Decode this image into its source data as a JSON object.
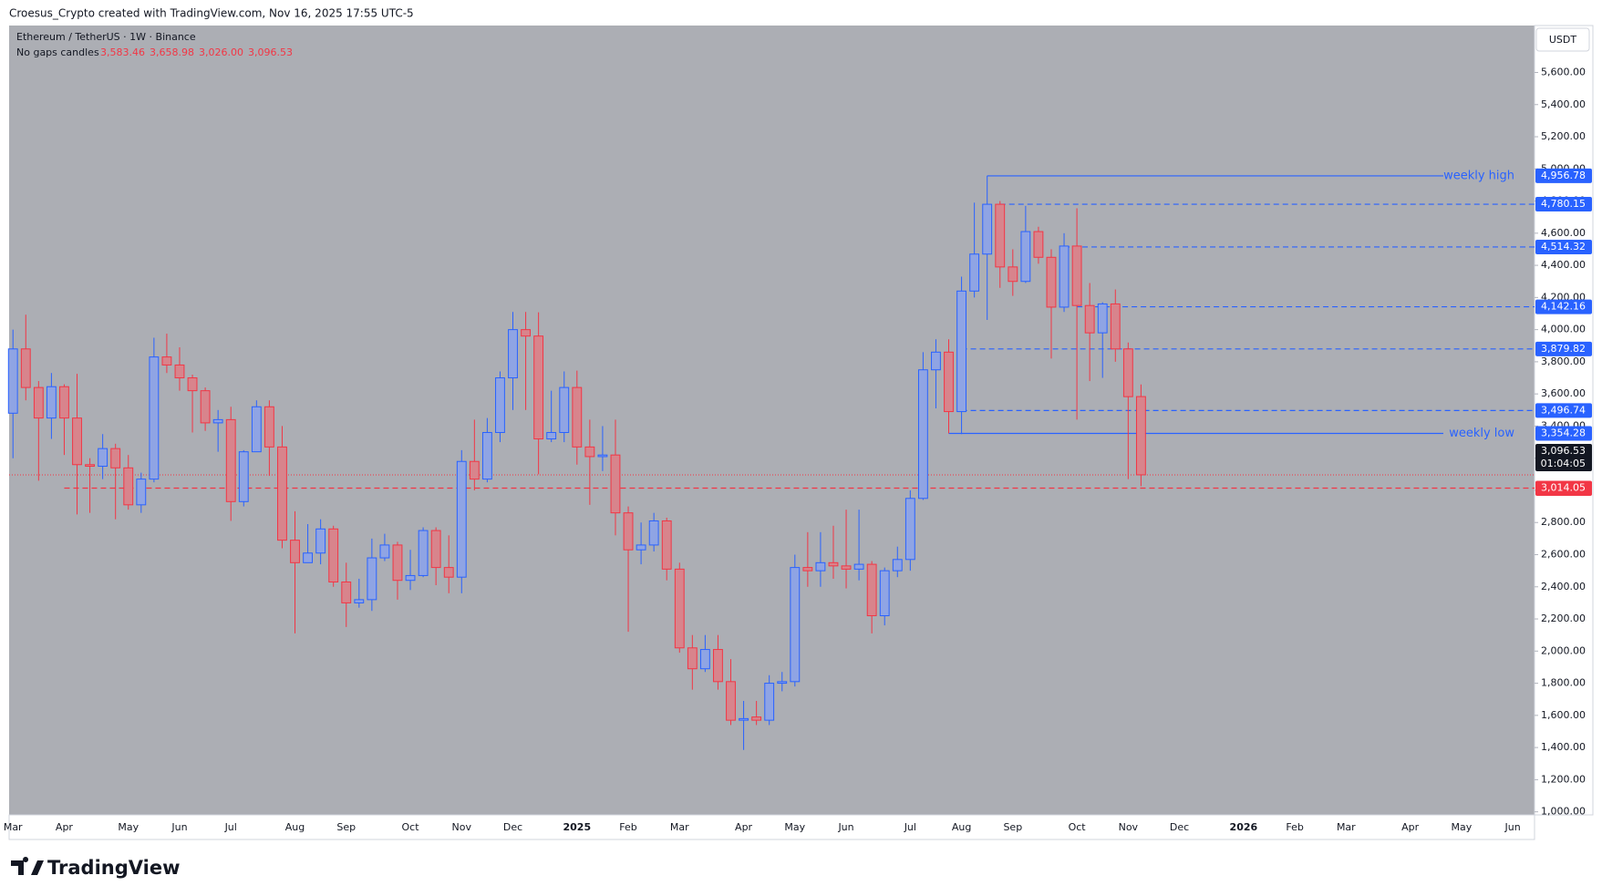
{
  "top_caption": "Croesus_Crypto created with TradingView.com, Nov 16, 2025 17:55 UTC-5",
  "brand": "TradingView",
  "chart_data": {
    "type": "candlestick",
    "symbol": "Ethereum / TetherUS · 1W · Binance",
    "candle_style": "No gaps candles",
    "ohlc_labels": [
      "3,583.46",
      "3,658.98",
      "3,026.00",
      "3,096.53"
    ],
    "currency": "USDT",
    "categories": [
      "Mar",
      null,
      null,
      null,
      "Apr",
      null,
      null,
      null,
      null,
      "May",
      null,
      null,
      null,
      "Jun",
      null,
      null,
      null,
      "Jul",
      null,
      null,
      null,
      null,
      "Aug",
      null,
      null,
      null,
      "Sep",
      null,
      null,
      null,
      null,
      "Oct",
      null,
      null,
      null,
      "Nov",
      null,
      null,
      null,
      "Dec",
      null,
      null,
      null,
      null,
      "2025",
      null,
      null,
      null,
      "Feb",
      null,
      null,
      null,
      "Mar",
      null,
      null,
      null,
      null,
      "Apr",
      null,
      null,
      null,
      "May",
      null,
      null,
      null,
      "Jun",
      null,
      null,
      null,
      null,
      "Jul",
      null,
      null,
      null,
      "Aug",
      null,
      null,
      null,
      "Sep",
      null,
      null,
      null,
      null,
      "Oct",
      null,
      null,
      null,
      "Nov",
      null,
      null,
      null,
      "Dec",
      null,
      null,
      null,
      null,
      "2026",
      null,
      null,
      null,
      "Feb",
      null,
      null,
      null,
      "Mar",
      null,
      null,
      null,
      null,
      "Apr",
      null,
      null,
      null,
      "May",
      null,
      null,
      null,
      "Jun",
      null
    ],
    "open": [
      3480,
      3880,
      3640,
      3450,
      3645,
      3450,
      3160,
      3150,
      3260,
      3140,
      2910,
      3070,
      3830,
      3780,
      3700,
      3620,
      3420,
      3440,
      2930,
      3240,
      3520,
      3270,
      2690,
      2550,
      2610,
      2760,
      2430,
      2300,
      2320,
      2580,
      2660,
      2440,
      2470,
      2750,
      2520,
      2460,
      3180,
      3070,
      3360,
      3700,
      4000,
      3960,
      3320,
      3360,
      3640,
      3270,
      3210,
      3220,
      2860,
      2630,
      2660,
      2810,
      2510,
      2020,
      1890,
      2010,
      1810,
      1570,
      1590,
      1570,
      1800,
      1810,
      2520,
      2500,
      2550,
      2530,
      2510,
      2540,
      2220,
      2500,
      2570,
      2950,
      3750,
      3860,
      3490,
      4240,
      4470,
      4780,
      4390,
      4300,
      4610,
      4450,
      4140,
      4520,
      4150,
      3980,
      4160,
      3880,
      3583.46,
      null,
      null,
      null,
      null,
      null,
      null,
      null,
      null,
      null,
      null,
      null,
      null,
      null,
      null,
      null,
      null,
      null,
      null,
      null,
      null,
      null,
      null,
      null,
      null,
      null,
      null,
      null,
      null,
      null,
      null
    ],
    "high": [
      4000,
      4093,
      3680,
      3730,
      3660,
      3725,
      3200,
      3350,
      3290,
      3220,
      3110,
      3950,
      3975,
      3890,
      3720,
      3640,
      3500,
      3520,
      3250,
      3560,
      3560,
      3400,
      2870,
      2790,
      2820,
      2780,
      2550,
      2450,
      2700,
      2730,
      2680,
      2630,
      2770,
      2770,
      2720,
      3250,
      3440,
      3450,
      3740,
      4110,
      4110,
      4108,
      3620,
      3740,
      3745,
      3440,
      3400,
      3440,
      2900,
      2800,
      2860,
      2830,
      2550,
      2100,
      2100,
      2100,
      1950,
      1690,
      1690,
      1850,
      1870,
      2600,
      2740,
      2740,
      2780,
      2880,
      2880,
      2560,
      2520,
      2650,
      3000,
      3860,
      3940,
      3940,
      4330,
      4790,
      4956.78,
      4800,
      4500,
      4770,
      4640,
      4500,
      4600,
      4755,
      4290,
      4170,
      4250,
      3920,
      3658.98,
      null,
      null,
      null,
      null,
      null,
      null,
      null,
      null,
      null,
      null,
      null,
      null,
      null,
      null,
      null,
      null,
      null,
      null,
      null,
      null,
      null,
      null,
      null,
      null,
      null,
      null,
      null,
      null,
      null,
      null
    ],
    "low": [
      3200,
      3560,
      3060,
      3320,
      3220,
      2850,
      2860,
      3070,
      2820,
      2880,
      2860,
      3050,
      3730,
      3620,
      3360,
      3370,
      3240,
      2810,
      2900,
      3240,
      3090,
      2640,
      2110,
      2550,
      2540,
      2400,
      2150,
      2270,
      2250,
      2560,
      2320,
      2380,
      2460,
      2410,
      2360,
      2360,
      3000,
      3050,
      3300,
      3500,
      3500,
      3100,
      3300,
      3300,
      3160,
      2910,
      3120,
      2720,
      2120,
      2540,
      2620,
      2440,
      1990,
      1760,
      1870,
      1760,
      1540,
      1385,
      1540,
      1540,
      1750,
      1780,
      2400,
      2400,
      2450,
      2390,
      2440,
      2110,
      2160,
      2460,
      2500,
      2940,
      3510,
      3354.28,
      3350,
      4200,
      4060,
      4260,
      4210,
      4290,
      4410,
      3820,
      4110,
      3440,
      3680,
      3700,
      3800,
      3070,
      3026.0,
      null,
      null,
      null,
      null,
      null,
      null,
      null,
      null,
      null,
      null,
      null,
      null,
      null,
      null,
      null,
      null,
      null,
      null,
      null,
      null,
      null,
      null,
      null,
      null,
      null,
      null,
      null,
      null,
      null,
      null
    ],
    "close": [
      3880,
      3640,
      3450,
      3645,
      3450,
      3160,
      3150,
      3260,
      3140,
      2910,
      3070,
      3830,
      3780,
      3700,
      3620,
      3420,
      3440,
      2930,
      3240,
      3520,
      3270,
      2690,
      2550,
      2610,
      2760,
      2430,
      2300,
      2320,
      2580,
      2660,
      2440,
      2470,
      2750,
      2520,
      2460,
      3180,
      3070,
      3360,
      3700,
      4000,
      3960,
      3320,
      3360,
      3640,
      3270,
      3210,
      3220,
      2860,
      2630,
      2660,
      2810,
      2510,
      2020,
      1890,
      2010,
      1810,
      1570,
      1580,
      1570,
      1800,
      1810,
      2520,
      2500,
      2550,
      2530,
      2510,
      2540,
      2220,
      2500,
      2570,
      2950,
      3750,
      3860,
      3490,
      4240,
      4470,
      4780,
      4390,
      4300,
      4610,
      4450,
      4140,
      4520,
      4150,
      3980,
      4160,
      3880,
      3583,
      3096.53,
      null,
      null,
      null,
      null,
      null,
      null,
      null,
      null,
      null,
      null,
      null,
      null,
      null,
      null,
      null,
      null,
      null,
      null,
      null,
      null,
      null,
      null,
      null,
      null,
      null,
      null,
      null,
      null,
      null,
      null
    ],
    "up_color": "#2962ff",
    "down_color": "#f23645",
    "up_fill": "#8fa4e4",
    "down_fill": "#d8848c",
    "ylim": [
      981,
      5892
    ],
    "yticks": [
      {
        "value": 1000,
        "label": "1,000.00"
      },
      {
        "value": 1200,
        "label": "1,200.00"
      },
      {
        "value": 1400,
        "label": "1,400.00"
      },
      {
        "value": 1600,
        "label": "1,600.00"
      },
      {
        "value": 1800,
        "label": "1,800.00"
      },
      {
        "value": 2000,
        "label": "2,000.00"
      },
      {
        "value": 2200,
        "label": "2,200.00"
      },
      {
        "value": 2400,
        "label": "2,400.00"
      },
      {
        "value": 2600,
        "label": "2,600.00"
      },
      {
        "value": 2800,
        "label": "2,800.00"
      },
      {
        "value": 3000,
        "label": "3,000.00"
      },
      {
        "value": 3200,
        "label": "3,200.00"
      },
      {
        "value": 3400,
        "label": "3,400.00"
      },
      {
        "value": 3600,
        "label": "3,600.00"
      },
      {
        "value": 3800,
        "label": "3,800.00"
      },
      {
        "value": 4000,
        "label": "4,000.00"
      },
      {
        "value": 4200,
        "label": "4,200.00"
      },
      {
        "value": 4400,
        "label": "4,400.00"
      },
      {
        "value": 4600,
        "label": "4,600.00"
      },
      {
        "value": 4800,
        "label": "4,800.00"
      },
      {
        "value": 5000,
        "label": "5,000.00"
      },
      {
        "value": 5200,
        "label": "5,200.00"
      },
      {
        "value": 5400,
        "label": "5,400.00"
      },
      {
        "value": 5600,
        "label": "5,600.00"
      }
    ],
    "grid": false,
    "levels": [
      {
        "value": 4956.78,
        "label": "4,956.78",
        "text": "weekly high",
        "style": "solid"
      },
      {
        "value": 4780.15,
        "label": "4,780.15",
        "style": "dashed"
      },
      {
        "value": 4514.32,
        "label": "4,514.32",
        "style": "dashed"
      },
      {
        "value": 4142.16,
        "label": "4,142.16",
        "style": "dashed"
      },
      {
        "value": 3879.82,
        "label": "3,879.82",
        "style": "dashed"
      },
      {
        "value": 3496.74,
        "label": "3,496.74",
        "style": "dashed"
      },
      {
        "value": 3354.28,
        "label": "3,354.28",
        "text": "weekly low",
        "style": "solid"
      }
    ],
    "level_color": "#2962ff",
    "support": {
      "value": 3014.05,
      "label": "3,014.05",
      "color": "#f23645"
    },
    "last": {
      "value": 3096.53,
      "label": "3,096.53",
      "countdown": "01:04:05",
      "color": "#f23645"
    }
  }
}
